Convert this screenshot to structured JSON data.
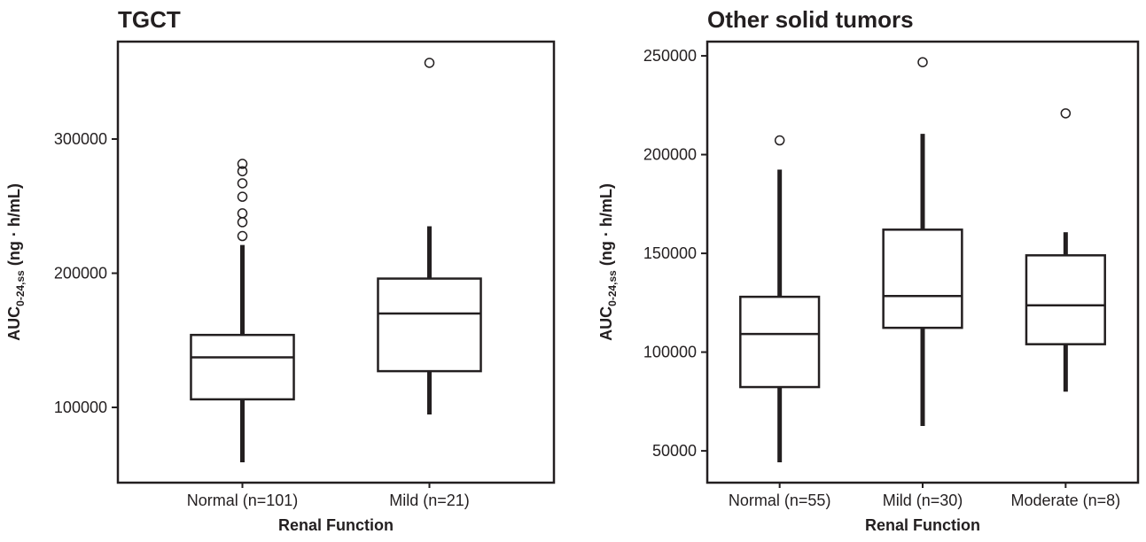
{
  "chart_data": [
    {
      "type": "box",
      "title": "TGCT",
      "x_label": "Renal Function",
      "y_label": {
        "main": "AUC",
        "sub": "0-24,ss",
        "unit": " (ng · h/mL)"
      },
      "categories": [
        "Normal (n=101)",
        "Mild (n=21)"
      ],
      "boxes": [
        {
          "whislo": 59100,
          "q1": 106000,
          "med": 137300,
          "q3": 154000,
          "whishi": 221000,
          "fliers": [
            227700,
            238000,
            244600,
            257000,
            267000,
            276000,
            281500
          ]
        },
        {
          "whislo": 94700,
          "q1": 127000,
          "med": 170000,
          "q3": 196000,
          "whishi": 235000,
          "fliers": [
            356800
          ]
        }
      ],
      "color": "#231f20",
      "ylim": [
        43900,
        372600
      ],
      "yticks": [
        100000,
        200000,
        300000
      ]
    },
    {
      "type": "box",
      "title": "Other solid tumors",
      "x_label": "Renal Function",
      "y_label": {
        "main": "AUC",
        "sub": "0-24,ss",
        "unit": " (ng · h/mL)"
      },
      "categories": [
        "Normal (n=55)",
        "Mild (n=30)",
        "Moderate (n=8)"
      ],
      "boxes": [
        {
          "whislo": 44200,
          "q1": 82300,
          "med": 109200,
          "q3": 128000,
          "whishi": 192400,
          "fliers": [
            207200
          ]
        },
        {
          "whislo": 62600,
          "q1": 112300,
          "med": 128400,
          "q3": 162000,
          "whishi": 210500,
          "fliers": [
            246800
          ]
        },
        {
          "whislo": 80000,
          "q1": 104000,
          "med": 123700,
          "q3": 149000,
          "whishi": 160700,
          "fliers": [
            220900
          ]
        }
      ],
      "color": "#231f20",
      "ylim": [
        33900,
        257200
      ],
      "yticks": [
        50000,
        100000,
        150000,
        200000,
        250000
      ]
    }
  ]
}
